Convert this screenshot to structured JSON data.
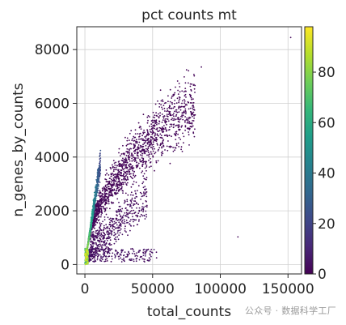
{
  "chart_data": {
    "type": "scatter",
    "title": "pct counts mt",
    "xlabel": "total_counts",
    "ylabel": "n_genes_by_counts",
    "xlim": [
      -6000,
      160000
    ],
    "ylim": [
      -350,
      8850
    ],
    "x_ticks": [
      0,
      50000,
      100000,
      150000
    ],
    "x_tick_labels": [
      "0",
      "50000",
      "100000",
      "150000"
    ],
    "y_ticks": [
      0,
      2000,
      4000,
      6000,
      8000
    ],
    "y_tick_labels": [
      "0",
      "2000",
      "4000",
      "6000",
      "8000"
    ],
    "grid": true,
    "colorbar": {
      "cmap": "viridis",
      "range": [
        0,
        98
      ],
      "ticks": [
        0,
        20,
        40,
        60,
        80
      ],
      "tick_labels": [
        "0",
        "20",
        "40",
        "60",
        "80"
      ]
    },
    "outliers": [
      {
        "x": 152000,
        "y": 8450
      },
      {
        "x": 113000,
        "y": 1030
      },
      {
        "x": 77000,
        "y": 4450
      },
      {
        "x": 86000,
        "y": 7350
      }
    ]
  },
  "watermark": "公众号 · 数据科学工厂",
  "colors": {
    "viridis": [
      "#440154",
      "#482878",
      "#3e4989",
      "#31688e",
      "#26828e",
      "#1f9e89",
      "#35b779",
      "#6ece58",
      "#b5de2b",
      "#fde725"
    ],
    "grid": "#d0d0d0",
    "axis": "#262626"
  }
}
